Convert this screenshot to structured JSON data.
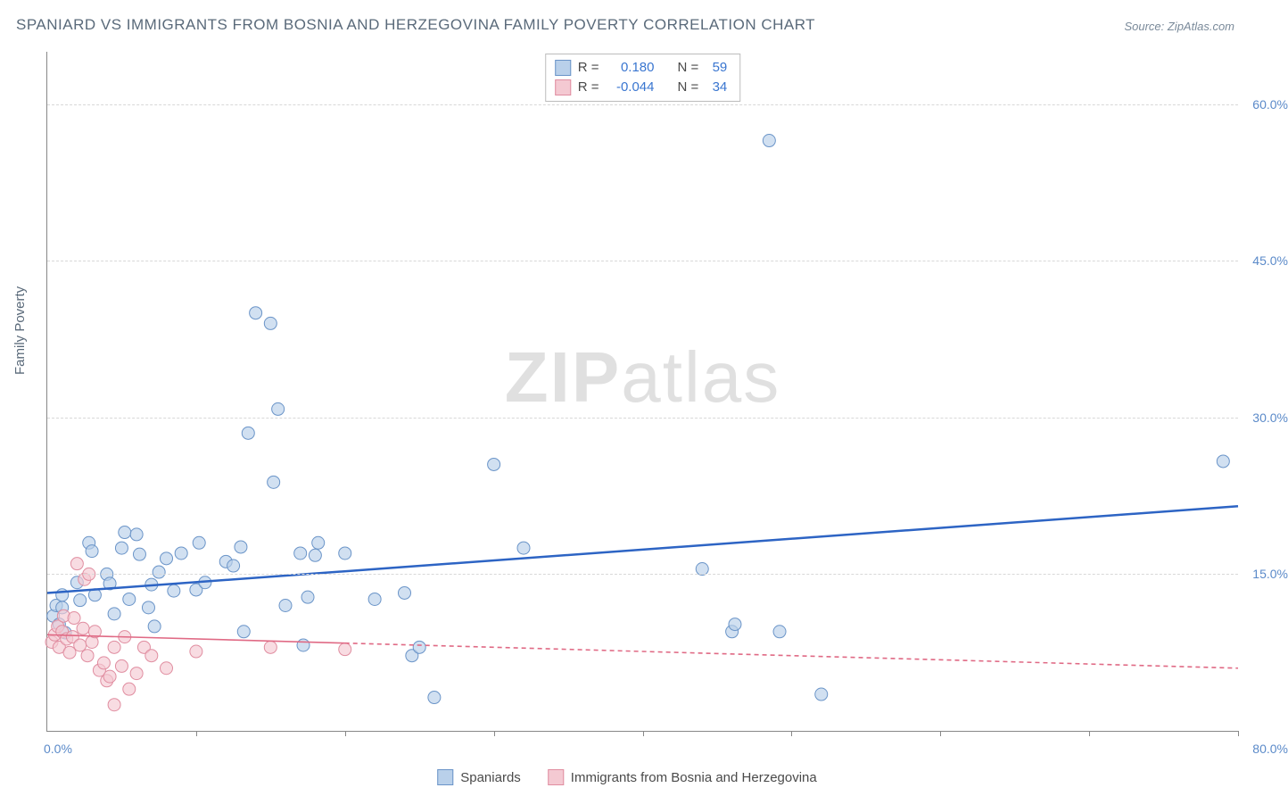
{
  "title": "SPANIARD VS IMMIGRANTS FROM BOSNIA AND HERZEGOVINA FAMILY POVERTY CORRELATION CHART",
  "source": "Source: ZipAtlas.com",
  "ylabel": "Family Poverty",
  "watermark_bold": "ZIP",
  "watermark_light": "atlas",
  "chart": {
    "type": "scatter",
    "xlim": [
      0,
      80
    ],
    "ylim": [
      0,
      65
    ],
    "x_ticks": [
      10,
      20,
      30,
      40,
      50,
      60,
      70,
      80
    ],
    "y_ticks": [
      15,
      30,
      45,
      60
    ],
    "x_min_label": "0.0%",
    "x_max_label": "80.0%",
    "y_tick_labels": [
      "15.0%",
      "30.0%",
      "45.0%",
      "60.0%"
    ],
    "grid_color": "#d8d8d8",
    "background_color": "#ffffff",
    "marker_radius": 7,
    "series": [
      {
        "name": "Spaniards",
        "fill": "#b9d0ea",
        "stroke": "#6a94c8",
        "trend_color": "#2d64c4",
        "trend_width": 2.5,
        "trend_dash": "none",
        "R": "0.180",
        "N": "59",
        "trend": {
          "y_at_x0": 13.2,
          "y_at_x80": 21.5
        },
        "points": [
          [
            0.4,
            11.0
          ],
          [
            0.6,
            12.0
          ],
          [
            0.8,
            10.2
          ],
          [
            1.0,
            11.8
          ],
          [
            1.0,
            13.0
          ],
          [
            1.2,
            9.4
          ],
          [
            2.0,
            14.2
          ],
          [
            2.2,
            12.5
          ],
          [
            2.8,
            18.0
          ],
          [
            3.0,
            17.2
          ],
          [
            3.2,
            13.0
          ],
          [
            4.0,
            15.0
          ],
          [
            4.2,
            14.1
          ],
          [
            4.5,
            11.2
          ],
          [
            5.0,
            17.5
          ],
          [
            5.2,
            19.0
          ],
          [
            5.5,
            12.6
          ],
          [
            6.0,
            18.8
          ],
          [
            6.2,
            16.9
          ],
          [
            6.8,
            11.8
          ],
          [
            7.0,
            14.0
          ],
          [
            7.2,
            10.0
          ],
          [
            7.5,
            15.2
          ],
          [
            8.0,
            16.5
          ],
          [
            8.5,
            13.4
          ],
          [
            9.0,
            17.0
          ],
          [
            10.0,
            13.5
          ],
          [
            10.2,
            18.0
          ],
          [
            10.6,
            14.2
          ],
          [
            12.0,
            16.2
          ],
          [
            12.5,
            15.8
          ],
          [
            13.0,
            17.6
          ],
          [
            13.2,
            9.5
          ],
          [
            13.5,
            28.5
          ],
          [
            14.0,
            40.0
          ],
          [
            15.0,
            39.0
          ],
          [
            15.2,
            23.8
          ],
          [
            15.5,
            30.8
          ],
          [
            16.0,
            12.0
          ],
          [
            17.0,
            17.0
          ],
          [
            17.2,
            8.2
          ],
          [
            17.5,
            12.8
          ],
          [
            18.0,
            16.8
          ],
          [
            18.2,
            18.0
          ],
          [
            20.0,
            17.0
          ],
          [
            22.0,
            12.6
          ],
          [
            24.0,
            13.2
          ],
          [
            24.5,
            7.2
          ],
          [
            25.0,
            8.0
          ],
          [
            26.0,
            3.2
          ],
          [
            30.0,
            25.5
          ],
          [
            32.0,
            17.5
          ],
          [
            44.0,
            15.5
          ],
          [
            46.0,
            9.5
          ],
          [
            46.2,
            10.2
          ],
          [
            48.5,
            56.5
          ],
          [
            49.2,
            9.5
          ],
          [
            52.0,
            3.5
          ],
          [
            79.0,
            25.8
          ]
        ]
      },
      {
        "name": "Immigrants from Bosnia and Herzegovina",
        "fill": "#f4c9d2",
        "stroke": "#e08da0",
        "trend_color": "#e06a85",
        "trend_width": 1.6,
        "trend_dash": "5,4",
        "R": "-0.044",
        "N": "34",
        "trend": {
          "y_at_x0": 9.2,
          "y_at_x80": 6.0
        },
        "trend_solid_until_x": 20,
        "points": [
          [
            0.3,
            8.5
          ],
          [
            0.5,
            9.2
          ],
          [
            0.7,
            10.0
          ],
          [
            0.8,
            8.0
          ],
          [
            1.0,
            9.5
          ],
          [
            1.1,
            11.0
          ],
          [
            1.3,
            8.8
          ],
          [
            1.5,
            7.5
          ],
          [
            1.7,
            9.0
          ],
          [
            1.8,
            10.8
          ],
          [
            2.0,
            16.0
          ],
          [
            2.2,
            8.2
          ],
          [
            2.4,
            9.8
          ],
          [
            2.5,
            14.5
          ],
          [
            2.7,
            7.2
          ],
          [
            2.8,
            15.0
          ],
          [
            3.0,
            8.5
          ],
          [
            3.2,
            9.5
          ],
          [
            3.5,
            5.8
          ],
          [
            3.8,
            6.5
          ],
          [
            4.0,
            4.8
          ],
          [
            4.2,
            5.2
          ],
          [
            4.5,
            8.0
          ],
          [
            4.5,
            2.5
          ],
          [
            5.0,
            6.2
          ],
          [
            5.2,
            9.0
          ],
          [
            5.5,
            4.0
          ],
          [
            6.0,
            5.5
          ],
          [
            6.5,
            8.0
          ],
          [
            7.0,
            7.2
          ],
          [
            8.0,
            6.0
          ],
          [
            10.0,
            7.6
          ],
          [
            15.0,
            8.0
          ],
          [
            20.0,
            7.8
          ]
        ]
      }
    ]
  },
  "stats_legend": {
    "r_label": "R =",
    "n_label": "N ="
  },
  "bottom_legend": {
    "series1": "Spaniards",
    "series2": "Immigrants from Bosnia and Herzegovina"
  }
}
